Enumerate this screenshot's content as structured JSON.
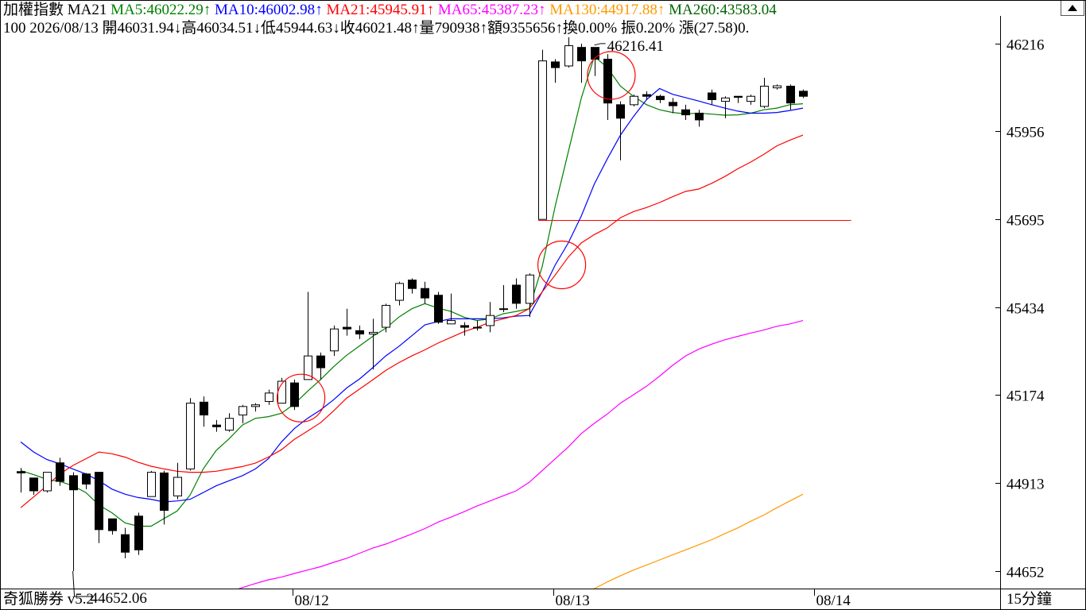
{
  "header": {
    "line1": [
      {
        "text": "加權指數 MA21 ",
        "color": "#000000"
      },
      {
        "text": "MA5:46022.29",
        "color": "#008000"
      },
      {
        "text": "↑",
        "color": "#008000"
      },
      {
        "text": " MA10:46002.98",
        "color": "#0000ff"
      },
      {
        "text": "↑",
        "color": "#0000ff"
      },
      {
        "text": " MA21:45945.91",
        "color": "#ff0000"
      },
      {
        "text": "↑",
        "color": "#ff0000"
      },
      {
        "text": " MA65:45387.23",
        "color": "#ff00ff"
      },
      {
        "text": "↑",
        "color": "#ff00ff"
      },
      {
        "text": " MA130:44917.88",
        "color": "#ff9900"
      },
      {
        "text": "↑",
        "color": "#ff9900"
      },
      {
        "text": " MA260:43583.04",
        "color": "#006400"
      }
    ],
    "line2": "100 2026/08/13 開46031.94↓高46034.51↓低45944.63↓收46021.48↑量790938↑額9355656↑換0.00% 振0.20% 漲(27.58)0."
  },
  "footer": {
    "brand": "奇狐勝券 v5.2",
    "timeframe": "15分鐘"
  },
  "chart_data": {
    "type": "candlestick",
    "ylim": [
      44580,
      46310
    ],
    "yticks": [
      46216,
      45956,
      45695,
      45434,
      45174,
      44913,
      44652
    ],
    "xticks": [
      {
        "label": "08/12",
        "index": 21
      },
      {
        "label": "08/13",
        "index": 41
      },
      {
        "label": "08/14",
        "index": 61
      }
    ],
    "annotations": [
      {
        "text": "46216.41",
        "index": 44,
        "value": 46216.41
      },
      {
        "text": "44652.06",
        "index": 4,
        "value": 44652.06
      }
    ],
    "hline": {
      "value": 45692,
      "from_index": 40,
      "to_index": 64,
      "color": "#ff0000"
    },
    "highlight_circles": [
      {
        "index": 21.5,
        "value": 45165
      },
      {
        "index": 41.5,
        "value": 45560
      },
      {
        "index": 45.3,
        "value": 46122
      }
    ],
    "candles": [
      [
        44947,
        44943,
        44958,
        44885
      ],
      [
        44928,
        44890,
        44928,
        44878
      ],
      [
        44890,
        44945,
        44945,
        44885
      ],
      [
        44973,
        44918,
        44988,
        44905
      ],
      [
        44935,
        44893,
        44945,
        44652
      ],
      [
        44940,
        44910,
        44943,
        44895
      ],
      [
        44945,
        44775,
        44945,
        44735
      ],
      [
        44807,
        44772,
        44807,
        44760
      ],
      [
        44760,
        44708,
        44780,
        44690
      ],
      [
        44815,
        44715,
        44825,
        44700
      ],
      [
        44873,
        44945,
        44949,
        44873
      ],
      [
        44943,
        44832,
        44950,
        44790
      ],
      [
        44875,
        44930,
        44973,
        44865
      ],
      [
        44955,
        45150,
        45165,
        44950
      ],
      [
        45153,
        45115,
        45170,
        45080
      ],
      [
        45085,
        45080,
        45100,
        45065
      ],
      [
        45070,
        45105,
        45120,
        45065
      ],
      [
        45115,
        45140,
        45145,
        45090
      ],
      [
        45140,
        45145,
        45150,
        45125
      ],
      [
        45155,
        45180,
        45190,
        45145
      ],
      [
        45150,
        45215,
        45225,
        45150
      ],
      [
        45210,
        45140,
        45220,
        45130
      ],
      [
        45220,
        45290,
        45480,
        45220
      ],
      [
        45290,
        45255,
        45300,
        45220
      ],
      [
        45305,
        45370,
        45380,
        45290
      ],
      [
        45375,
        45370,
        45430,
        45350
      ],
      [
        45365,
        45355,
        45380,
        45340
      ],
      [
        45355,
        45360,
        45400,
        45250
      ],
      [
        45375,
        45440,
        45445,
        45360
      ],
      [
        45455,
        45505,
        45510,
        45440
      ],
      [
        45515,
        45490,
        45520,
        45475
      ],
      [
        45490,
        45462,
        45510,
        45445
      ],
      [
        45470,
        45390,
        45480,
        45385
      ],
      [
        45385,
        45395,
        45475,
        45385
      ],
      [
        45380,
        45375,
        45390,
        45350
      ],
      [
        45375,
        45375,
        45395,
        45365
      ],
      [
        45380,
        45410,
        45450,
        45360
      ],
      [
        45430,
        45430,
        45500,
        45420
      ],
      [
        45500,
        45446,
        45520,
        45430
      ],
      [
        45446,
        45530,
        45535,
        45405
      ],
      [
        45695,
        46165,
        46198,
        45695
      ],
      [
        46162,
        46145,
        46170,
        46100
      ],
      [
        46150,
        46210,
        46235,
        46145
      ],
      [
        46205,
        46165,
        46216,
        46100
      ],
      [
        46205,
        46170,
        46205,
        46120
      ],
      [
        46170,
        46040,
        46185,
        45990
      ],
      [
        46035,
        45995,
        46045,
        45870
      ],
      [
        46035,
        46060,
        46065,
        46030
      ],
      [
        46065,
        46060,
        46075,
        46050
      ],
      [
        46060,
        46050,
        46065,
        46040
      ],
      [
        46042,
        46032,
        46055,
        46010
      ],
      [
        46020,
        46005,
        46035,
        45990
      ],
      [
        46010,
        45990,
        46020,
        45970
      ],
      [
        46070,
        46050,
        46080,
        46035
      ],
      [
        46045,
        46055,
        46060,
        45995
      ],
      [
        46060,
        46057,
        46060,
        46040
      ],
      [
        46045,
        46060,
        46065,
        46035
      ],
      [
        46030,
        46090,
        46115,
        46025
      ],
      [
        46085,
        46091,
        46095,
        46080
      ],
      [
        46090,
        46040,
        46095,
        46020
      ],
      [
        46075,
        46060,
        46080,
        46055
      ]
    ],
    "series": [
      {
        "name": "MA5",
        "color": "#008000",
        "values": [
          44950,
          44938,
          44924,
          44918,
          44905,
          44885,
          44848,
          44825,
          44795,
          44785,
          44785,
          44808,
          44830,
          44878,
          44955,
          45010,
          45045,
          45085,
          45105,
          45110,
          45120,
          45148,
          45185,
          45220,
          45258,
          45292,
          45320,
          45348,
          45372,
          45405,
          45430,
          45445,
          45432,
          45422,
          45405,
          45395,
          45400,
          45415,
          45422,
          45430,
          45555,
          45735,
          45895,
          46055,
          46178,
          46145,
          46090,
          46060,
          46035,
          46020,
          46012,
          46008,
          46010,
          46007,
          46004,
          46005,
          46010,
          46020,
          46025,
          46035,
          46038
        ]
      },
      {
        "name": "MA10",
        "color": "#0000ff",
        "values": [
          45035,
          45005,
          44983,
          44970,
          44955,
          44940,
          44920,
          44895,
          44880,
          44870,
          44865,
          44857,
          44860,
          44865,
          44885,
          44905,
          44920,
          44935,
          44955,
          44985,
          45035,
          45075,
          45105,
          45130,
          45160,
          45195,
          45222,
          45255,
          45290,
          45318,
          45350,
          45382,
          45392,
          45400,
          45400,
          45400,
          45400,
          45403,
          45408,
          45410,
          45480,
          45560,
          45625,
          45705,
          45800,
          45875,
          45945,
          46000,
          46050,
          46083,
          46066,
          46056,
          46046,
          46035,
          46025,
          46016,
          46010,
          46010,
          46012,
          46018,
          46025
        ]
      },
      {
        "name": "MA21",
        "color": "#ff0000",
        "values": [
          44840,
          44872,
          44905,
          44940,
          44965,
          44985,
          45005,
          45000,
          44990,
          44975,
          44963,
          44955,
          44948,
          44945,
          44945,
          44948,
          44955,
          44962,
          44972,
          44990,
          45012,
          45043,
          45067,
          45092,
          45127,
          45165,
          45192,
          45219,
          45247,
          45270,
          45290,
          45308,
          45328,
          45345,
          45362,
          45375,
          45390,
          45400,
          45410,
          45430,
          45480,
          45530,
          45583,
          45625,
          45650,
          45670,
          45700,
          45718,
          45730,
          45745,
          45762,
          45778,
          45785,
          45802,
          45822,
          45845,
          45865,
          45888,
          45913,
          45930,
          45945
        ]
      },
      {
        "name": "MA65",
        "values": [
          null,
          null,
          null,
          null,
          null,
          null,
          null,
          null,
          null,
          null,
          null,
          44537,
          44543,
          44553,
          44565,
          44577,
          44590,
          44603,
          44615,
          44626,
          44634,
          44645,
          44655,
          44665,
          44678,
          44690,
          44705,
          44720,
          44732,
          44747,
          44762,
          44778,
          44797,
          44812,
          44828,
          44845,
          44860,
          44875,
          44890,
          44915,
          44950,
          44985,
          45020,
          45060,
          45090,
          45118,
          45150,
          45175,
          45200,
          45230,
          45262,
          45290,
          45310,
          45325,
          45338,
          45348,
          45358,
          45367,
          45378,
          45385,
          45395
        ],
        "color": "#ff00ff"
      },
      {
        "name": "MA130",
        "values": [
          null,
          null,
          null,
          null,
          null,
          null,
          null,
          null,
          null,
          null,
          null,
          null,
          null,
          null,
          null,
          null,
          null,
          null,
          null,
          null,
          null,
          null,
          null,
          null,
          null,
          null,
          null,
          null,
          null,
          null,
          null,
          null,
          null,
          null,
          null,
          null,
          null,
          null,
          null,
          null,
          null,
          44570,
          44580,
          44590,
          44600,
          44620,
          44638,
          44655,
          44670,
          44685,
          44700,
          44715,
          44730,
          44745,
          44763,
          44780,
          44800,
          44818,
          44840,
          44860,
          44880
        ],
        "color": "#ff9900"
      }
    ]
  }
}
